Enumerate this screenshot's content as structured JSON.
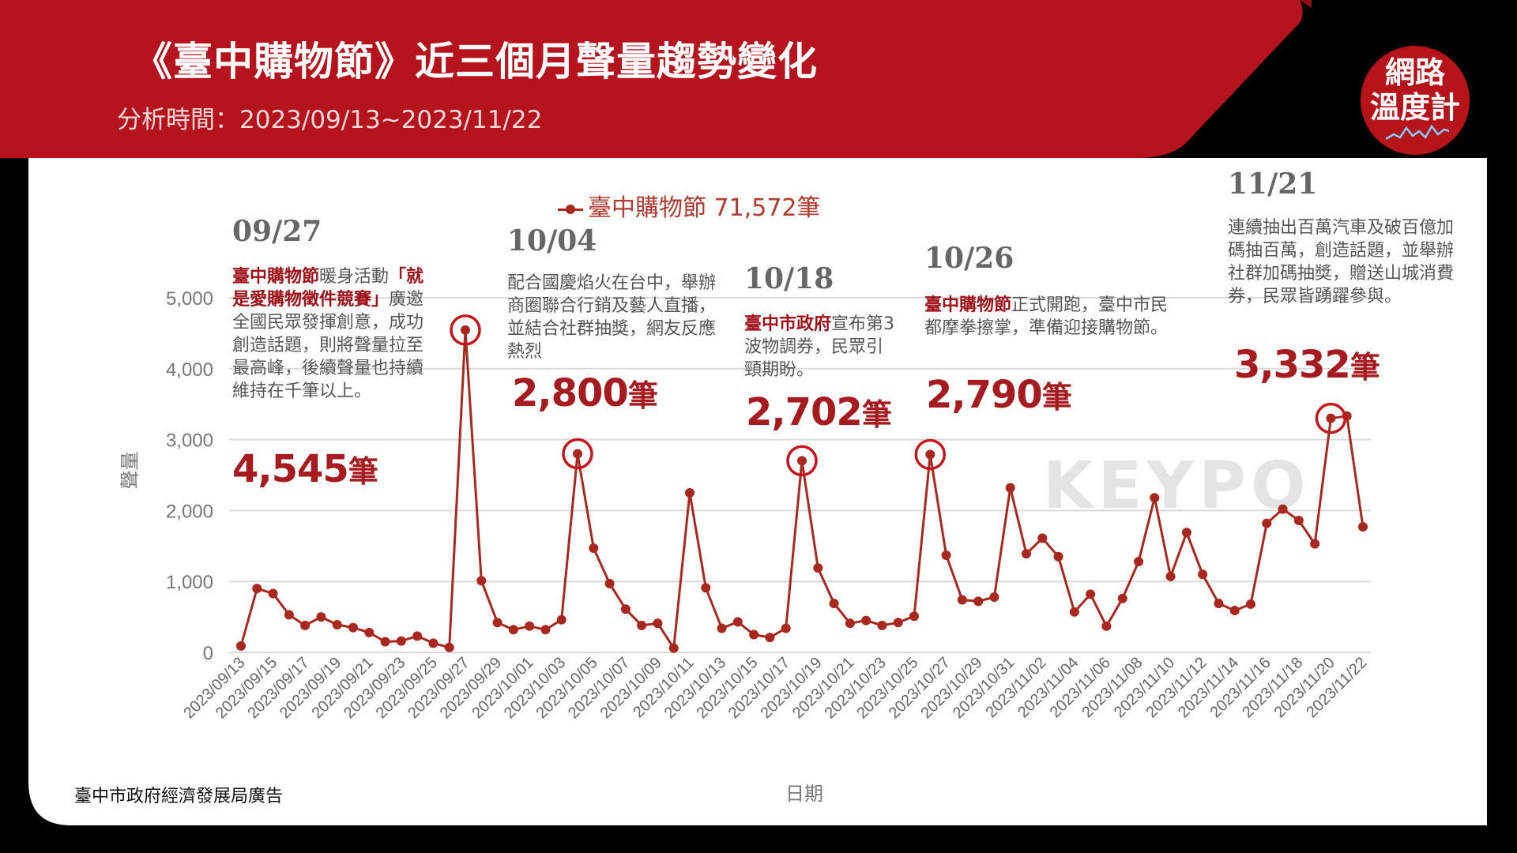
{
  "header": {
    "title": "《臺中購物節》近三個月聲量趨勢變化",
    "period": "分析時間：2023/09/13~2023/11/22",
    "logo_line1": "網路",
    "logo_line2": "溫度計"
  },
  "colors": {
    "header_red": "#b5141d",
    "line": "#a8281f",
    "highlight_text": "#9e1118",
    "panel": "#ffffff"
  },
  "watermark": "KEYPO",
  "footer": "臺中市政府經濟發展局廣告",
  "annotations": [
    {
      "date": "09/27",
      "pre": "",
      "hl": "臺中購物節",
      "text": "暖身活動",
      "hl2": "「就是愛購物徵件競賽」",
      "text2": "廣邀全國民眾發揮創意，成功創造話題，則將聲量拉至最高峰，後續聲量也持續維持在千筆以上。",
      "value": "4,545",
      "unit": "筆"
    },
    {
      "date": "10/04",
      "pre": "配合國慶焰火在台中，舉辦商圈聯合行銷及藝人直播，並結合社群抽獎，網友反應熱烈",
      "hl": "",
      "text": "",
      "hl2": "",
      "text2": "",
      "value": "2,800",
      "unit": "筆"
    },
    {
      "date": "10/18",
      "pre": "",
      "hl": "臺中市政府",
      "text": "宣布第3波物調券，民眾引頸期盼。",
      "hl2": "",
      "text2": "",
      "value": "2,702",
      "unit": "筆"
    },
    {
      "date": "10/26",
      "pre": "",
      "hl": "臺中購物節",
      "text": "正式開跑，臺中市民都摩拳擦掌，準備迎接購物節。",
      "hl2": "",
      "text2": "",
      "value": "2,790",
      "unit": "筆"
    },
    {
      "date": "11/21",
      "pre": "連續抽出百萬汽車及破百億加碼抽百萬，創造話題，並舉辦社群加碼抽獎，贈送山城消費券，民眾皆踴躍參與。",
      "hl": "",
      "text": "",
      "hl2": "",
      "text2": "",
      "value": "3,332",
      "unit": "筆"
    }
  ],
  "chart_data": {
    "type": "line",
    "xlabel": "日期",
    "ylabel": "聲量",
    "ylim": [
      0,
      5000
    ],
    "yticks": [
      0,
      1000,
      2000,
      3000,
      4000,
      5000
    ],
    "ytick_labels": [
      "0",
      "1,000",
      "2,000",
      "3,000",
      "4,000",
      "5,000"
    ],
    "grid": true,
    "legend_position": "top-center",
    "series": [
      {
        "name": "臺中購物節 71,572筆",
        "x": [
          "2023/09/13",
          "2023/09/14",
          "2023/09/15",
          "2023/09/16",
          "2023/09/17",
          "2023/09/18",
          "2023/09/19",
          "2023/09/20",
          "2023/09/21",
          "2023/09/22",
          "2023/09/23",
          "2023/09/24",
          "2023/09/25",
          "2023/09/26",
          "2023/09/27",
          "2023/09/28",
          "2023/09/29",
          "2023/09/30",
          "2023/10/01",
          "2023/10/02",
          "2023/10/03",
          "2023/10/04",
          "2023/10/05",
          "2023/10/06",
          "2023/10/07",
          "2023/10/08",
          "2023/10/09",
          "2023/10/10",
          "2023/10/11",
          "2023/10/12",
          "2023/10/13",
          "2023/10/14",
          "2023/10/15",
          "2023/10/16",
          "2023/10/17",
          "2023/10/18",
          "2023/10/19",
          "2023/10/20",
          "2023/10/21",
          "2023/10/22",
          "2023/10/23",
          "2023/10/24",
          "2023/10/25",
          "2023/10/26",
          "2023/10/27",
          "2023/10/28",
          "2023/10/29",
          "2023/10/30",
          "2023/10/31",
          "2023/11/01",
          "2023/11/02",
          "2023/11/03",
          "2023/11/04",
          "2023/11/05",
          "2023/11/06",
          "2023/11/07",
          "2023/11/08",
          "2023/11/09",
          "2023/11/10",
          "2023/11/11",
          "2023/11/12",
          "2023/11/13",
          "2023/11/14",
          "2023/11/15",
          "2023/11/16",
          "2023/11/17",
          "2023/11/18",
          "2023/11/19",
          "2023/11/20",
          "2023/11/21",
          "2023/11/22"
        ],
        "values": [
          90,
          900,
          830,
          530,
          380,
          500,
          390,
          350,
          280,
          150,
          160,
          230,
          130,
          70,
          4545,
          1010,
          420,
          320,
          370,
          320,
          460,
          2800,
          1470,
          970,
          610,
          380,
          410,
          60,
          2250,
          910,
          340,
          430,
          250,
          210,
          340,
          2702,
          1190,
          690,
          410,
          450,
          380,
          420,
          510,
          2790,
          1370,
          740,
          720,
          780,
          2320,
          1390,
          1610,
          1350,
          570,
          820,
          370,
          760,
          1280,
          2180,
          1070,
          1690,
          1100,
          690,
          590,
          680,
          1820,
          2020,
          1860,
          1530,
          3300,
          3332,
          1770
        ]
      }
    ],
    "x_tick_labels": [
      "2023/09/13",
      "2023/09/15",
      "2023/09/17",
      "2023/09/19",
      "2023/09/21",
      "2023/09/23",
      "2023/09/25",
      "2023/09/27",
      "2023/09/29",
      "2023/10/01",
      "2023/10/03",
      "2023/10/05",
      "2023/10/07",
      "2023/10/09",
      "2023/10/11",
      "2023/10/13",
      "2023/10/15",
      "2023/10/17",
      "2023/10/19",
      "2023/10/21",
      "2023/10/23",
      "2023/10/25",
      "2023/10/27",
      "2023/10/29",
      "2023/10/31",
      "2023/11/02",
      "2023/11/04",
      "2023/11/06",
      "2023/11/08",
      "2023/11/10",
      "2023/11/12",
      "2023/11/14",
      "2023/11/16",
      "2023/11/18",
      "2023/11/20",
      "2023/11/22"
    ],
    "circled_points": [
      "2023/09/27",
      "2023/10/04",
      "2023/10/18",
      "2023/10/26",
      "2023/11/20"
    ]
  }
}
